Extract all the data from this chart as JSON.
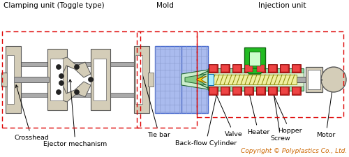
{
  "title_left": "Clamping unit (Toggle type)",
  "title_mold": "Mold",
  "title_right": "Injection unit",
  "copyright": "Copyright © Polyplastics Co., Ltd.",
  "bg_color": "#ffffff",
  "clamp_color": "#d4cdb8",
  "mold_blue": "#aabbee",
  "red_color": "#cc2222",
  "yellow_color": "#f0f0a0",
  "green_color": "#22bb22",
  "gray_color": "#aaaaaa",
  "dark_color": "#222222",
  "label_color": "#000000",
  "copyright_color": "#cc6600",
  "dashed_color": "#dd0000"
}
